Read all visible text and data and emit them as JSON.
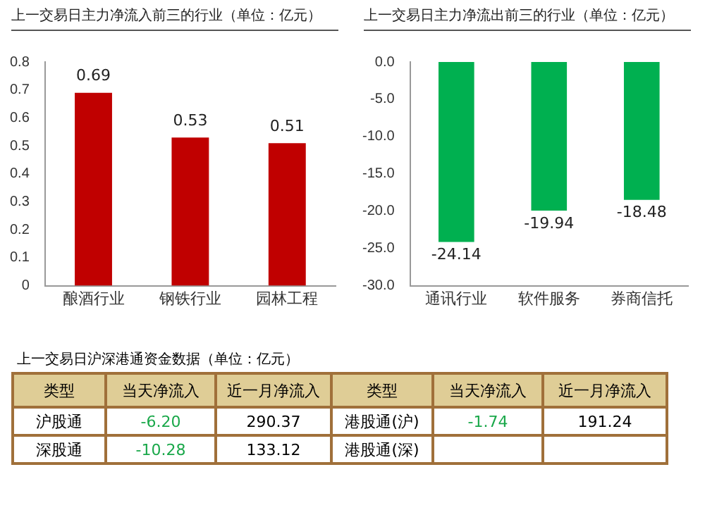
{
  "chart_data": [
    {
      "type": "bar",
      "title": "上一交易日主力净流入前三的行业（单位：亿元）",
      "categories": [
        "酿酒行业",
        "钢铁行业",
        "园林工程"
      ],
      "values": [
        0.69,
        0.53,
        0.51
      ],
      "color": "#c00000",
      "ylim": [
        0,
        0.8
      ],
      "yticks": [
        0,
        0.1,
        0.2,
        0.3,
        0.4,
        0.5,
        0.6,
        0.7,
        0.8
      ],
      "grid": false,
      "legend": false,
      "data_labels": true
    },
    {
      "type": "bar",
      "title": "上一交易日主力净流出前三的行业（单位：亿元）",
      "categories": [
        "通讯行业",
        "软件服务",
        "券商信托"
      ],
      "values": [
        -24.14,
        -19.94,
        -18.48
      ],
      "color": "#00b050",
      "ylim": [
        -30,
        0
      ],
      "yticks": [
        {
          "value": 0,
          "label": "0.0"
        },
        {
          "value": -5,
          "label": "-5.0"
        },
        {
          "value": -10,
          "label": "-10.0"
        },
        {
          "value": -15,
          "label": "-15.0"
        },
        {
          "value": -20,
          "label": "-20.0"
        },
        {
          "value": -25,
          "label": "-25.0"
        },
        {
          "value": -30,
          "label": "-30.0"
        }
      ],
      "grid": false,
      "legend": false,
      "data_labels": true
    },
    {
      "type": "other",
      "title": "上一交易日沪深港通资金数据（单位：亿元）",
      "annotations": [
        "类型",
        "当天净流入",
        "近一月净流入",
        "类型",
        "当天净流入",
        "近一月净流入",
        "沪股通",
        "-6.20",
        "290.37",
        "港股通(沪)",
        "-1.74",
        "191.24",
        "深股通",
        "-10.28",
        "133.12",
        "港股通(深)"
      ]
    }
  ]
}
